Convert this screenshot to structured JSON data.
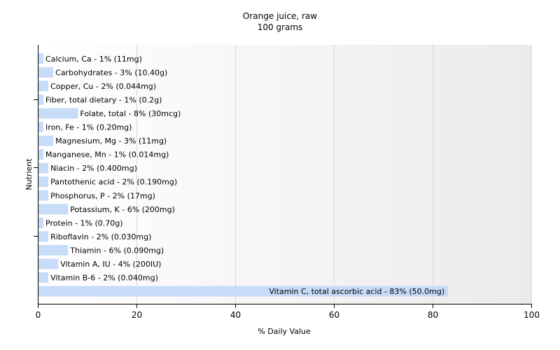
{
  "chart_data": {
    "type": "bar",
    "orientation": "horizontal",
    "title": "Orange juice, raw",
    "subtitle": "100 grams",
    "xlabel": "% Daily Value",
    "ylabel": "Nutrient",
    "xlim": [
      0,
      100
    ],
    "x_ticks": [
      0,
      20,
      40,
      60,
      80,
      100
    ],
    "grid": true,
    "bar_color": "#c6dcf7",
    "categories": [
      "Calcium, Ca",
      "Carbohydrates",
      "Copper, Cu",
      "Fiber, total dietary",
      "Folate, total",
      "Iron, Fe",
      "Magnesium, Mg",
      "Manganese, Mn",
      "Niacin",
      "Pantothenic acid",
      "Phosphorus, P",
      "Potassium, K",
      "Protein",
      "Riboflavin",
      "Thiamin",
      "Vitamin A, IU",
      "Vitamin B-6",
      "Vitamin C, total ascorbic acid"
    ],
    "values": [
      1,
      3,
      2,
      1,
      8,
      1,
      3,
      1,
      2,
      2,
      2,
      6,
      1,
      2,
      6,
      4,
      2,
      83
    ],
    "bar_labels": [
      "Calcium, Ca - 1% (11mg)",
      "Carbohydrates - 3% (10.40g)",
      "Copper, Cu - 2% (0.044mg)",
      "Fiber, total dietary - 1% (0.2g)",
      "Folate, total - 8% (30mcg)",
      "Iron, Fe - 1% (0.20mg)",
      "Magnesium, Mg - 3% (11mg)",
      "Manganese, Mn - 1% (0.014mg)",
      "Niacin - 2% (0.400mg)",
      "Pantothenic acid - 2% (0.190mg)",
      "Phosphorus, P - 2% (17mg)",
      "Potassium, K - 6% (200mg)",
      "Protein - 1% (0.70g)",
      "Riboflavin - 2% (0.030mg)",
      "Thiamin - 6% (0.090mg)",
      "Vitamin A, IU - 4% (200IU)",
      "Vitamin B-6 - 2% (0.040mg)",
      "Vitamin C, total ascorbic acid - 83% (50.0mg)"
    ]
  }
}
